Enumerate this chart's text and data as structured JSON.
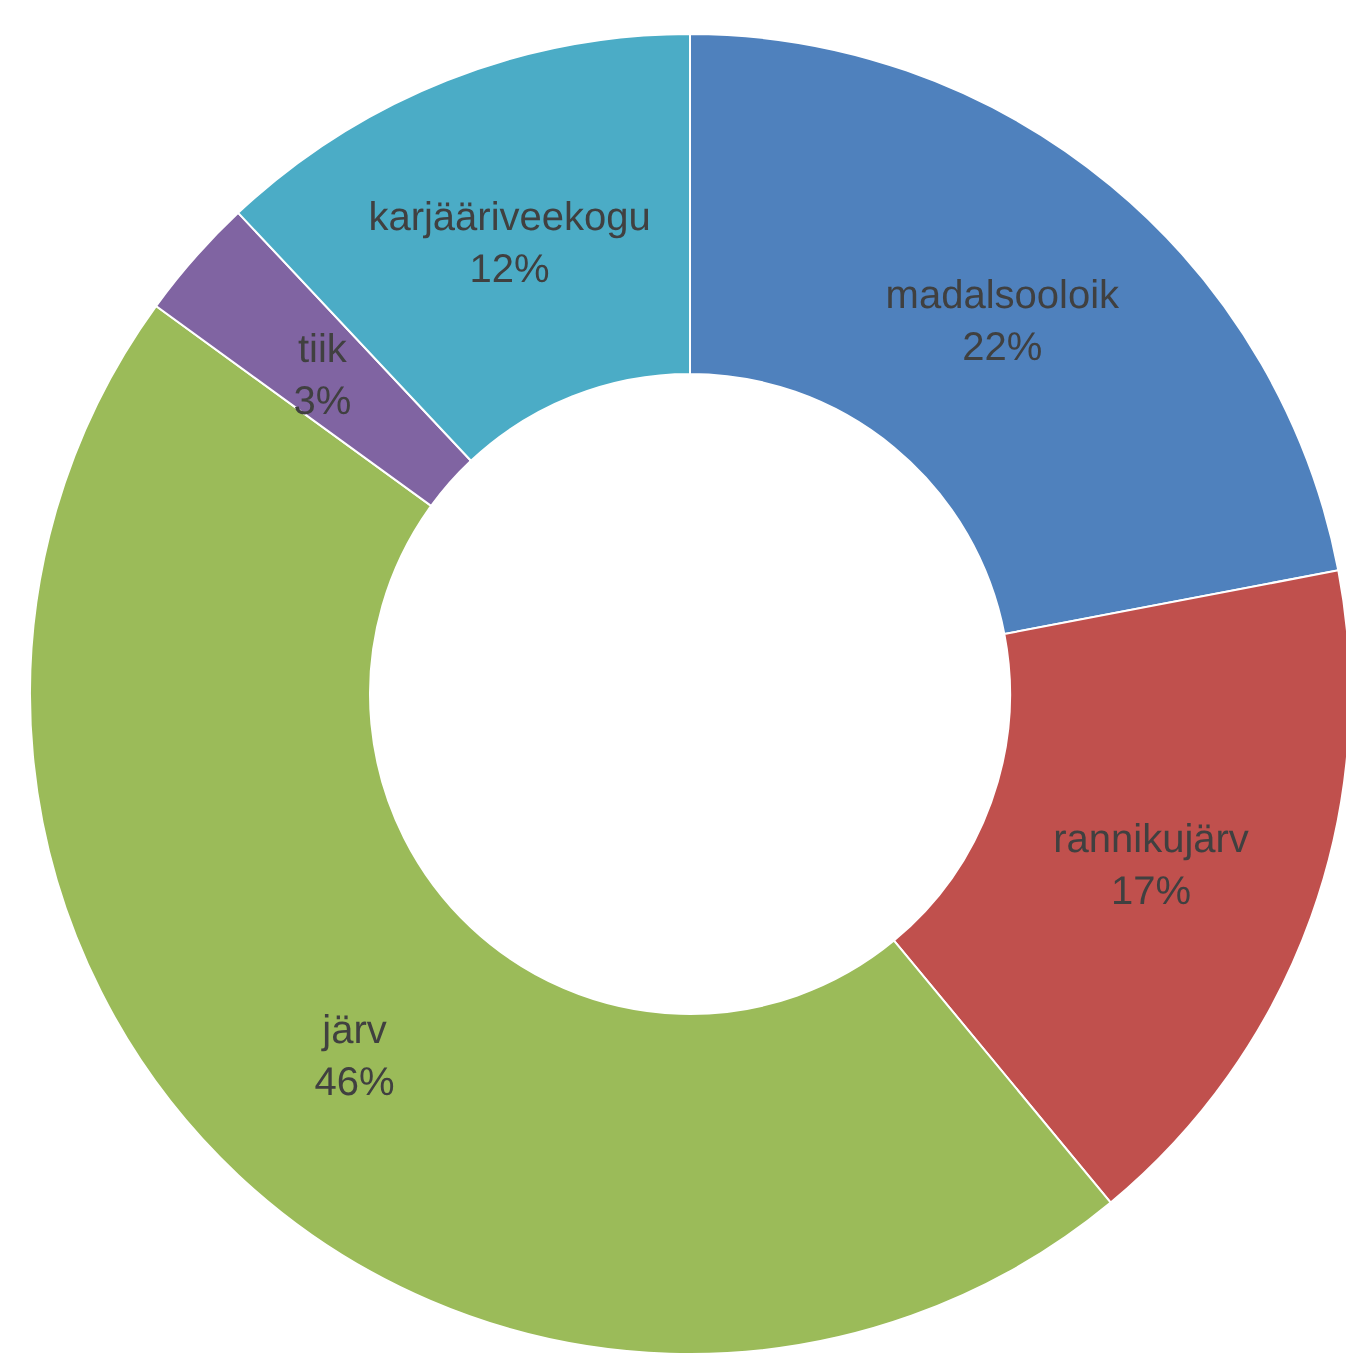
{
  "chart_data": {
    "type": "donut",
    "categories": [
      "madalsooloik",
      "rannikujärv",
      "järv",
      "tiik",
      "karjääriveekogu"
    ],
    "values": [
      22,
      17,
      46,
      3,
      12
    ],
    "colors": [
      "#4f81bd",
      "#c0504d",
      "#9bbb59",
      "#8064a2",
      "#4bacc6"
    ],
    "value_labels": [
      "22%",
      "17%",
      "46%",
      "3%",
      "12%"
    ]
  }
}
